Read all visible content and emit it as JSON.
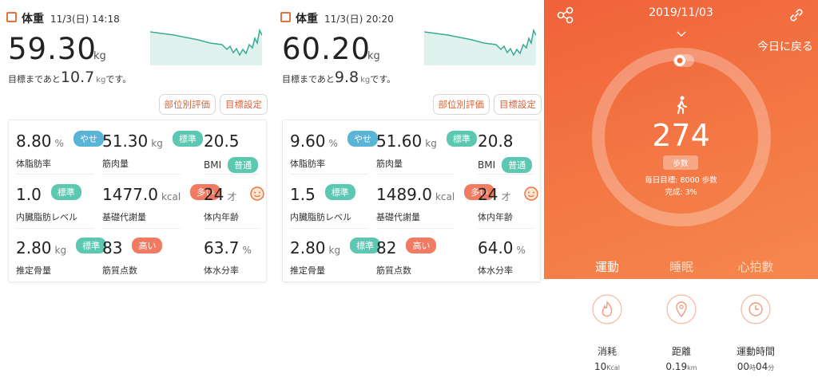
{
  "panels": [
    {
      "title": "体重",
      "datetime": "11/3(日) 14:18",
      "weight": "59.30",
      "weight_unit": "kg",
      "goal_prefix": "目標まであと",
      "goal_value": "10.7",
      "goal_unit": "kg",
      "goal_suffix": "です。",
      "buttons": [
        "部位別評価",
        "目標設定"
      ],
      "metrics": [
        {
          "value": "8.80",
          "unit": "%",
          "label": "体脂肪率",
          "badge": "やせ",
          "badge_color": "#5ab4d6"
        },
        {
          "value": "51.30",
          "unit": "kg",
          "label": "筋肉量",
          "badge": "標準",
          "badge_color": "#5cc8b2"
        },
        {
          "value": "20.5",
          "label": "BMI",
          "badge": "普通",
          "badge_color": "#5cc8b2"
        },
        {
          "value": "1.0",
          "label": "内臓脂肪レベル",
          "badge": "標準",
          "badge_color": "#5cc8b2"
        },
        {
          "value": "1477.0",
          "unit": "kcal",
          "label": "基礎代謝量",
          "badge": "多い",
          "badge_color": "#f07a62"
        },
        {
          "value": "24",
          "unit": "才",
          "label": "体内年齢"
        },
        {
          "value": "2.80",
          "unit": "kg",
          "label": "推定骨量",
          "badge": "標準",
          "badge_color": "#5cc8b2"
        },
        {
          "value": "83",
          "label": "筋質点数",
          "badge": "高い",
          "badge_color": "#f07a62"
        },
        {
          "value": "63.7",
          "unit": "%",
          "label": "体水分率"
        }
      ]
    },
    {
      "title": "体重",
      "datetime": "11/3(日) 20:20",
      "weight": "60.20",
      "weight_unit": "kg",
      "goal_prefix": "目標まであと",
      "goal_value": "9.8",
      "goal_unit": "kg",
      "goal_suffix": "です。",
      "buttons": [
        "部位別評価",
        "目標設定"
      ],
      "metrics": [
        {
          "value": "9.60",
          "unit": "%",
          "label": "体脂肪率",
          "badge": "やせ",
          "badge_color": "#5ab4d6"
        },
        {
          "value": "51.60",
          "unit": "kg",
          "label": "筋肉量",
          "badge": "標準",
          "badge_color": "#5cc8b2"
        },
        {
          "value": "20.8",
          "label": "BMI",
          "badge": "普通",
          "badge_color": "#5cc8b2"
        },
        {
          "value": "1.5",
          "label": "内臓脂肪レベル",
          "badge": "標準",
          "badge_color": "#5cc8b2"
        },
        {
          "value": "1489.0",
          "unit": "kcal",
          "label": "基礎代謝量",
          "badge": "多い",
          "badge_color": "#f07a62"
        },
        {
          "value": "24",
          "unit": "才",
          "label": "体内年齢"
        },
        {
          "value": "2.80",
          "unit": "kg",
          "label": "推定骨量",
          "badge": "標準",
          "badge_color": "#5cc8b2"
        },
        {
          "value": "82",
          "label": "筋質点数",
          "badge": "高い",
          "badge_color": "#f07a62"
        },
        {
          "value": "64.0",
          "unit": "%",
          "label": "体水分率"
        }
      ]
    }
  ],
  "activity": {
    "date": "2019/11/03",
    "back": "今日に戻る",
    "steps": "274",
    "steps_label": "歩数",
    "goal": "毎日目標: 8000 歩数",
    "completion": "完成: 3%",
    "tabs": [
      "運動",
      "睡眠",
      "心拍數"
    ],
    "stats": [
      {
        "label": "消耗",
        "parts": [
          {
            "value": "10",
            "unit": "Kcal"
          }
        ]
      },
      {
        "label": "距離",
        "parts": [
          {
            "value": "0.19",
            "unit": "km"
          }
        ]
      },
      {
        "label": "運動時間",
        "parts": [
          {
            "value": "00",
            "unit": "時"
          },
          {
            "value": "04",
            "unit": "分"
          }
        ]
      }
    ]
  }
}
